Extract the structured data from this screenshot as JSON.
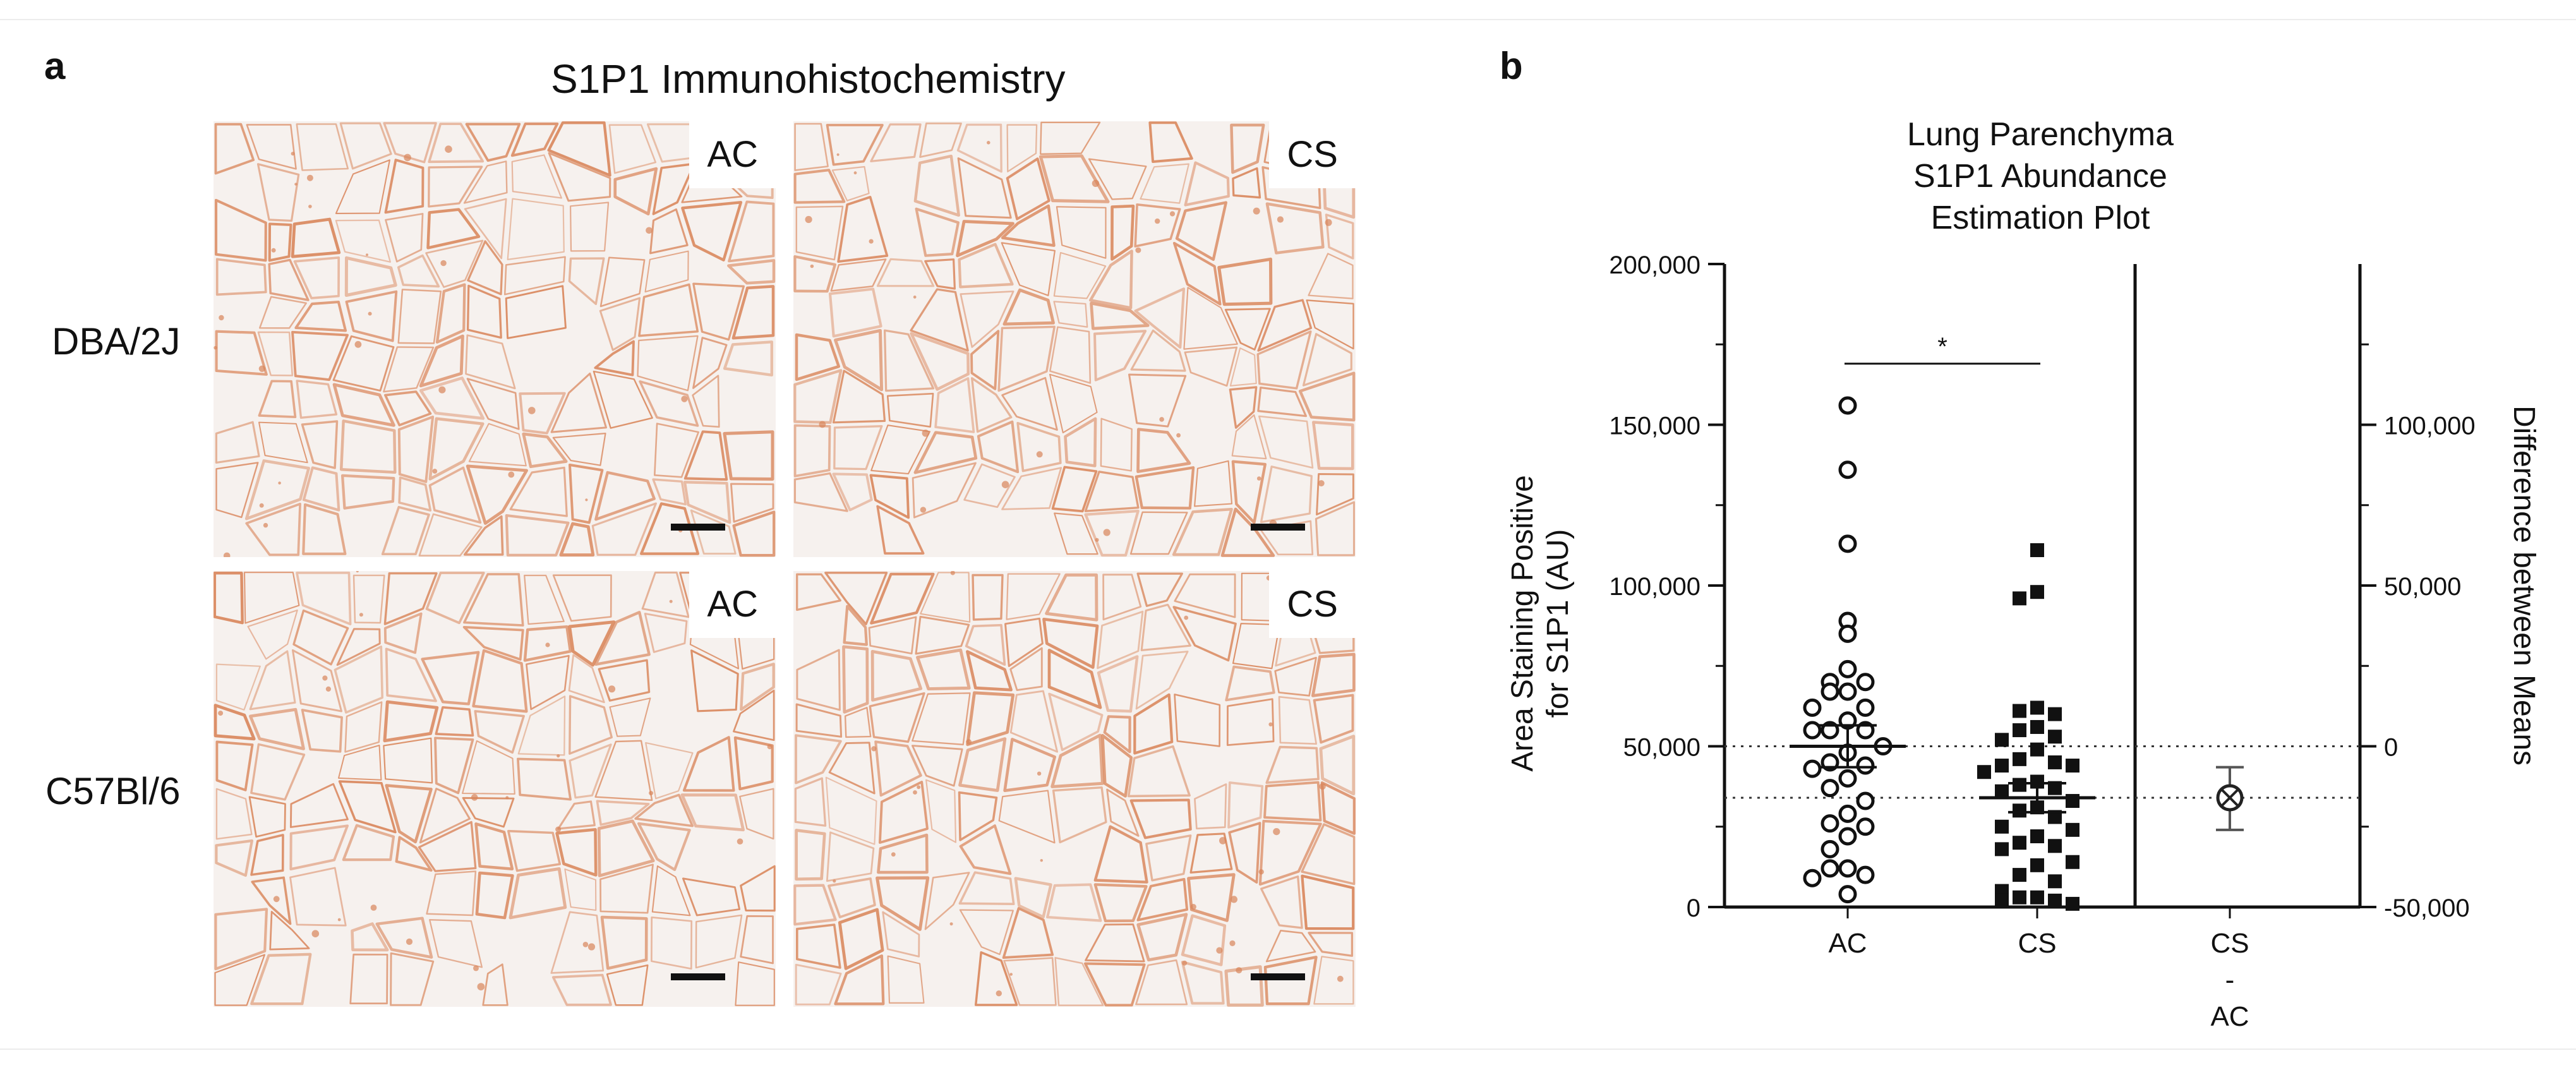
{
  "panel_a": {
    "letter": "a",
    "title": "S1P1 Immunohistochemistry",
    "rows": [
      {
        "label": "DBA/2J",
        "panels": [
          {
            "tag": "AC"
          },
          {
            "tag": "CS"
          }
        ]
      },
      {
        "label": "C57Bl/6",
        "panels": [
          {
            "tag": "AC"
          },
          {
            "tag": "CS"
          }
        ]
      }
    ],
    "stain_color": "#d9855a",
    "background_color": "#f6f1ee"
  },
  "panel_b": {
    "letter": "b"
  },
  "chart_data": {
    "type": "scatter",
    "title": [
      "Lung Parenchyma",
      "S1P1 Abundance",
      "Estimation Plot"
    ],
    "ylabel": [
      "Area Staining Positive",
      "for S1P1 (AU)"
    ],
    "ylabel_right": "Difference between Means",
    "ylim": [
      0,
      200000
    ],
    "yticks": [
      0,
      50000,
      100000,
      150000,
      200000
    ],
    "ytick_labels": [
      "0",
      "50,000",
      "100,000",
      "150,000",
      "200,000"
    ],
    "y2lim": [
      -50000,
      150000
    ],
    "y2ticks": [
      -50000,
      0,
      50000,
      100000
    ],
    "y2tick_labels": [
      "-50,000",
      "0",
      "50,000",
      "100,000"
    ],
    "categories": [
      "AC",
      "CS",
      "CS\n-\nAC"
    ],
    "significance": "*",
    "series": [
      {
        "name": "AC",
        "marker": "open-circle",
        "mean": 50000,
        "sem": 6500,
        "values": [
          156000,
          136000,
          113000,
          89000,
          85000,
          74000,
          70000,
          70000,
          67000,
          67000,
          62000,
          62000,
          58000,
          55000,
          55000,
          55000,
          50000,
          48000,
          45000,
          44000,
          43000,
          40000,
          37000,
          33000,
          29000,
          26000,
          25000,
          22000,
          18000,
          12000,
          12000,
          10000,
          9000,
          4000
        ]
      },
      {
        "name": "CS",
        "marker": "filled-square",
        "mean": 34000,
        "sem": 4500,
        "values": [
          111000,
          98000,
          96000,
          62000,
          61000,
          60000,
          56000,
          55000,
          53000,
          52000,
          49000,
          46000,
          45000,
          44000,
          44000,
          42000,
          39000,
          38000,
          37000,
          36000,
          33000,
          31000,
          30000,
          28000,
          25000,
          24000,
          22000,
          20000,
          19000,
          18000,
          14000,
          13000,
          10000,
          8000,
          5000,
          3000,
          3000,
          2000,
          2000,
          1000
        ]
      }
    ],
    "difference": {
      "mean": -16000,
      "ci_low": -26000,
      "ci_high": -6500,
      "marker": "circled-x"
    },
    "reference_lines": [
      50000,
      34000
    ]
  }
}
